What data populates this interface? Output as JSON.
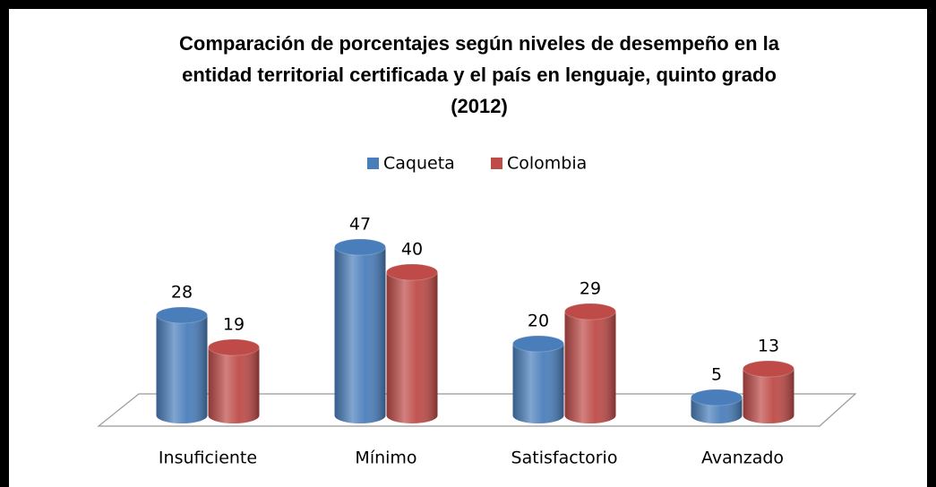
{
  "chart_data": {
    "type": "bar3d",
    "title": [
      "Comparación de porcentajes según niveles de desempeño en la",
      "entidad territorial certificada y el país en lenguaje, quinto grado",
      "(2012)"
    ],
    "categories": [
      "Insuficiente",
      "Mínimo",
      "Satisfactorio",
      "Avanzado"
    ],
    "series": [
      {
        "name": "Caqueta",
        "color": "#4a7ebb",
        "values": [
          28,
          47,
          20,
          5
        ]
      },
      {
        "name": "Colombia",
        "color": "#be4b48",
        "values": [
          19,
          40,
          29,
          13
        ]
      }
    ],
    "legend": "top"
  }
}
